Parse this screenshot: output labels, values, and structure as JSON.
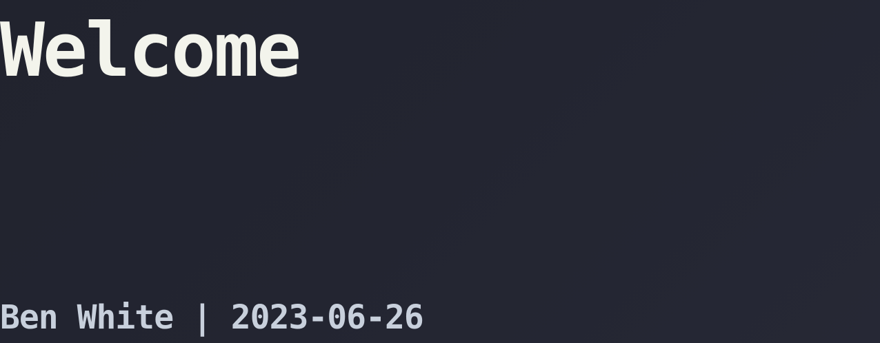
{
  "page": {
    "title": "Welcome",
    "byline": "Ben White | 2023-06-26"
  },
  "colors": {
    "background": "#22242f",
    "title_text": "#f3f4ec",
    "byline_text": "#c8d0dc"
  }
}
